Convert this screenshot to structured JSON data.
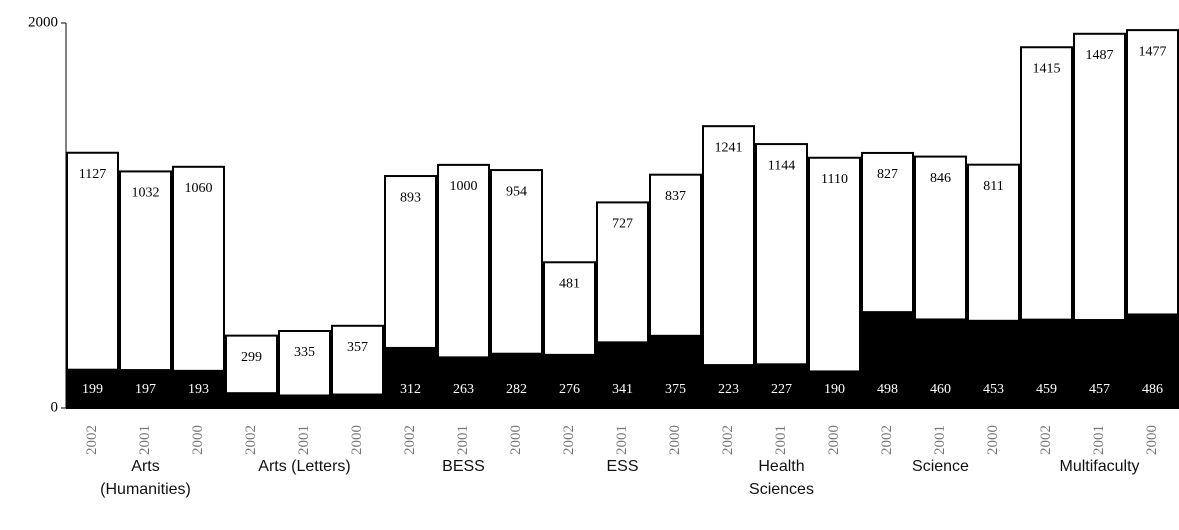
{
  "chart_data": {
    "type": "stacked_bar",
    "categories": [
      "2002",
      "2001",
      "2000",
      "2002",
      "2001",
      "2000",
      "2002",
      "2001",
      "2000",
      "2002",
      "2001",
      "2000",
      "2002",
      "2001",
      "2000",
      "2002",
      "2001",
      "2000",
      "2002",
      "2001",
      "2000"
    ],
    "groups": [
      [
        "Arts",
        "(Humanities)"
      ],
      [
        "Arts (Letters)"
      ],
      [
        "BESS"
      ],
      [
        "ESS"
      ],
      [
        "Health",
        "Sciences"
      ],
      [
        "Science"
      ],
      [
        "Multifaculty"
      ]
    ],
    "series": [
      {
        "color": "#000000",
        "values": [
          199,
          197,
          193,
          77,
          65,
          70,
          312,
          263,
          282,
          276,
          341,
          375,
          223,
          227,
          190,
          498,
          460,
          453,
          459,
          457,
          486
        ]
      },
      {
        "color": "#ffffff",
        "values": [
          1127,
          1032,
          1060,
          299,
          335,
          357,
          893,
          1000,
          954,
          481,
          727,
          837,
          1241,
          1144,
          1110,
          827,
          846,
          811,
          1415,
          1487,
          1477
        ]
      }
    ],
    "ylim": [
      0,
      2000
    ],
    "yticks": [
      0,
      2000
    ]
  }
}
